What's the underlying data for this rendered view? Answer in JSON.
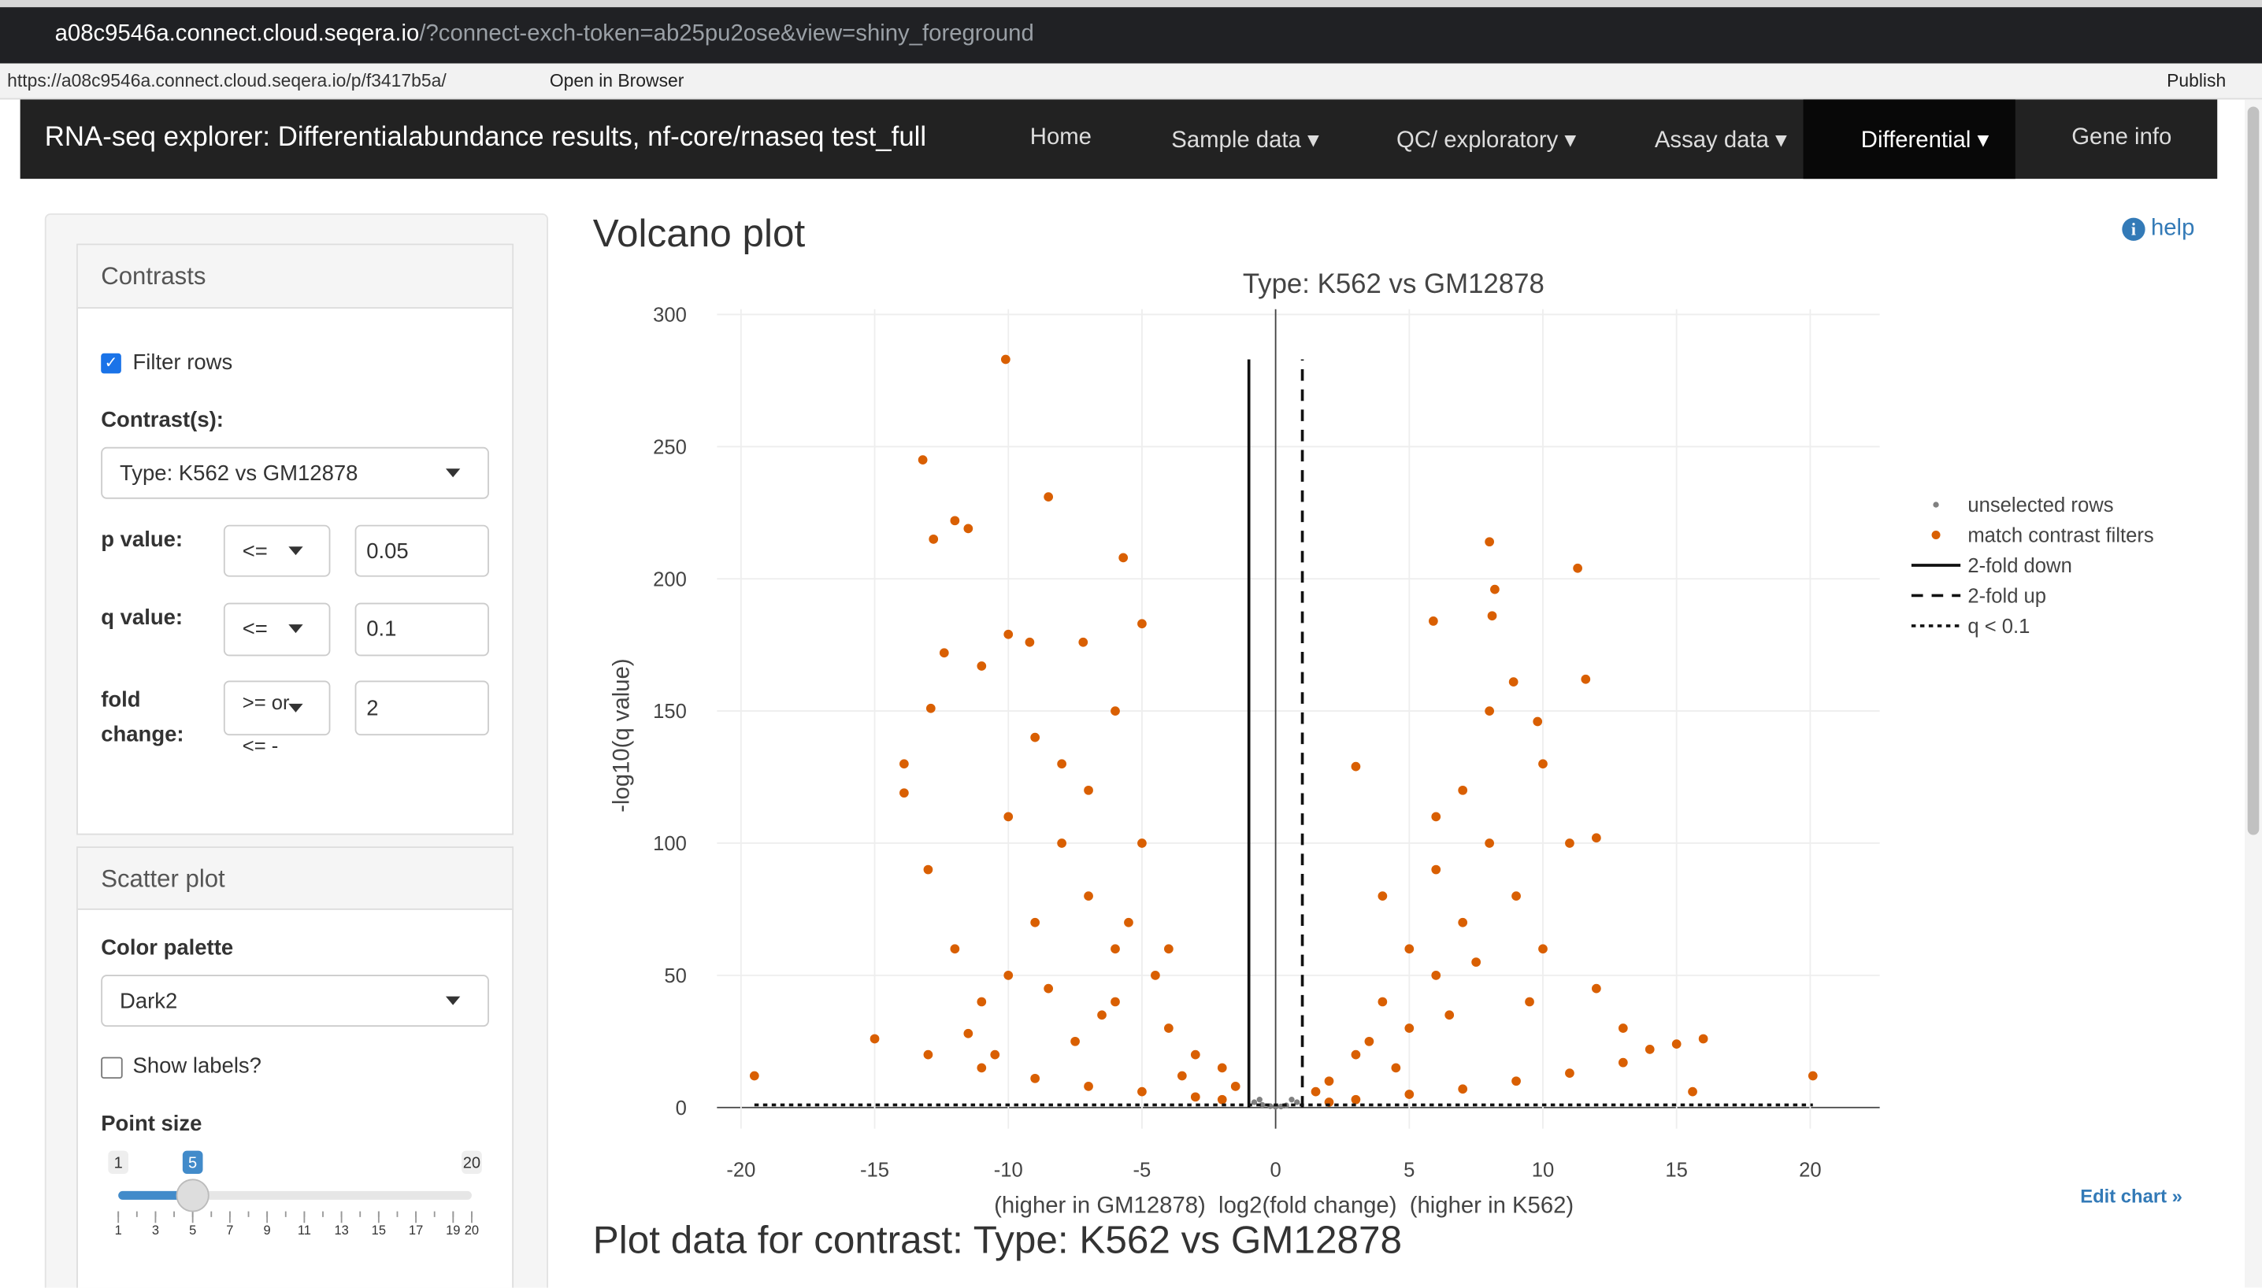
{
  "browser": {
    "url_host": "a08c9546a.connect.cloud.seqera.io",
    "url_rest": "/?connect-exch-token=ab25pu2ose&view=shiny_foreground",
    "status_url": "https://a08c9546a.connect.cloud.seqera.io/p/f3417b5a/",
    "open_in_browser": "Open in Browser",
    "publish": "Publish"
  },
  "navbar": {
    "title": "RNA-seq explorer: Differentialabundance results, nf-core/rnaseq test_full",
    "items": [
      "Home",
      "Sample data",
      "QC/ exploratory",
      "Assay data",
      "Differential",
      "Gene info"
    ]
  },
  "sidebar": {
    "contrasts": {
      "heading": "Contrasts",
      "filter_rows": "Filter rows",
      "contrast_label": "Contrast(s):",
      "contrast_value": "Type: K562 vs GM12878",
      "p_label": "p value:",
      "p_op": "<=",
      "p_value": "0.05",
      "q_label": "q value:",
      "q_op": "<=",
      "q_value": "0.1",
      "fc_label": "fold change:",
      "fc_op": ">= or <= -",
      "fc_value": "2"
    },
    "scatter": {
      "heading": "Scatter plot",
      "palette_label": "Color palette",
      "palette_value": "Dark2",
      "show_labels": "Show labels?",
      "point_size_label": "Point size",
      "slider_min": 1,
      "slider_max": 20,
      "slider_value": 5,
      "slider_ticks": [
        1,
        3,
        5,
        7,
        9,
        11,
        13,
        15,
        17,
        19,
        20
      ]
    }
  },
  "main": {
    "heading": "Volcano plot",
    "help": "help",
    "edit_chart": "Edit chart »",
    "plot_data_heading": "Plot data for contrast: Type: K562 vs GM12878"
  },
  "chart_data": {
    "type": "scatter",
    "title": "Type: K562 vs GM12878",
    "x_label": "(higher in GM12878)  log2(fold change)  (higher in K562)",
    "y_label": "-log10(q value)",
    "xlim": [
      -20.9,
      22.6
    ],
    "ylim": [
      -8,
      302
    ],
    "xticks": [
      -20,
      -15,
      -10,
      -5,
      0,
      5,
      10,
      15,
      20
    ],
    "yticks": [
      0,
      50,
      100,
      150,
      200,
      250,
      300
    ],
    "grid": true,
    "legend": "right",
    "series": [
      {
        "name": "unselected rows",
        "color": "#808080",
        "x": [
          -0.8,
          -0.5,
          -0.2,
          0,
          0.2,
          0.4,
          0.8,
          -0.6,
          0.6
        ],
        "values": [
          2,
          1,
          0.5,
          0.3,
          0.4,
          0.8,
          2,
          3,
          3
        ]
      },
      {
        "name": "match contrast filters",
        "color": "#d95f02",
        "x": [
          -10.1,
          -13.2,
          -12.0,
          -11.5,
          -12.8,
          -8.5,
          -5.7,
          -5.0,
          -12.4,
          -11.0,
          -10.0,
          -9.2,
          -7.2,
          -12.9,
          -13.9,
          -13.9,
          -15,
          -13,
          -11,
          -9,
          -7,
          -5,
          -3,
          -2,
          -19.5,
          -8,
          -7,
          -6,
          -9,
          -10,
          -6,
          -4,
          -3,
          -12,
          -11,
          -8,
          -7,
          -9,
          -5,
          -10,
          -6,
          -13,
          -4,
          -2,
          -1.5,
          -8.5,
          -7.5,
          -6.5,
          -10.5,
          -11.5,
          -5.5,
          -3.5,
          -4.5,
          8.0,
          11.3,
          8.2,
          8.1,
          5.9,
          8.9,
          11.6,
          9.8,
          15,
          13,
          11,
          9,
          7,
          5,
          3,
          2,
          20.1,
          15.6,
          4,
          5,
          6,
          7,
          8,
          5,
          3,
          9,
          10,
          12,
          11,
          6,
          7,
          4,
          3,
          2,
          1.5,
          10,
          8,
          6,
          13,
          14,
          12,
          16,
          6.5,
          7.5,
          9.5,
          4.5,
          3.5
        ],
        "values": [
          283,
          245,
          222,
          219,
          215,
          231,
          208,
          183,
          172,
          167,
          179,
          176,
          176,
          151,
          130,
          119,
          26,
          20,
          15,
          11,
          8,
          6,
          4,
          3,
          12,
          100,
          80,
          60,
          70,
          50,
          150,
          30,
          20,
          60,
          40,
          130,
          120,
          140,
          100,
          110,
          40,
          90,
          60,
          15,
          8,
          45,
          25,
          35,
          20,
          28,
          70,
          12,
          50,
          214,
          204,
          196,
          186,
          184,
          161,
          162,
          146,
          24,
          17,
          13,
          10,
          7,
          5,
          3,
          2,
          12,
          6,
          40,
          60,
          90,
          120,
          150,
          30,
          20,
          80,
          60,
          45,
          100,
          50,
          70,
          80,
          129,
          10,
          6,
          130,
          100,
          110,
          30,
          22,
          102,
          26,
          35,
          55,
          40,
          15,
          25
        ]
      }
    ],
    "ref_lines": [
      {
        "name": "2-fold down",
        "x": -1,
        "dash": "solid"
      },
      {
        "name": "2-fold up",
        "x": 1,
        "dash": "dashed"
      },
      {
        "name": "q < 0.1",
        "y": 1,
        "dash": "dotted"
      }
    ]
  }
}
